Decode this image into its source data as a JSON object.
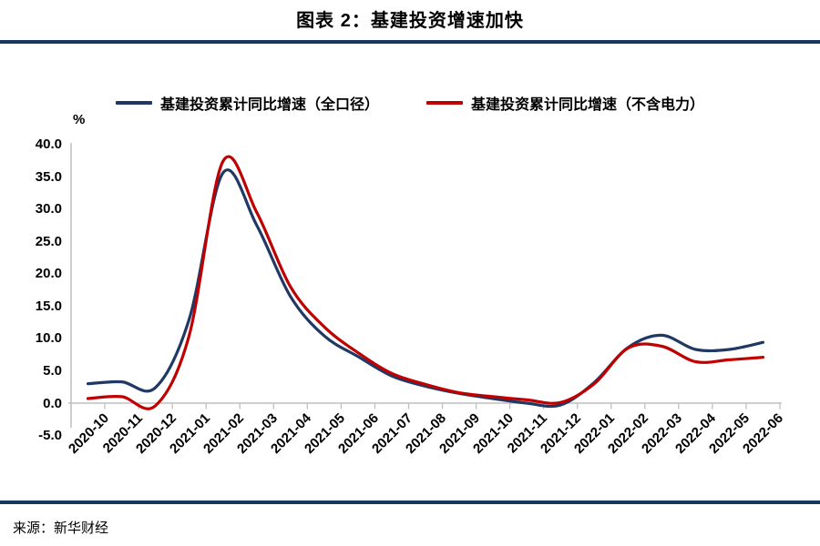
{
  "page": {
    "title": "图表 2：基建投资增速加快",
    "source": "来源：新华财经"
  },
  "colors": {
    "divider": "#17375E",
    "axis_line": "#BFBFBF",
    "navy_series": "#1F3864",
    "red_series": "#C00000",
    "text": "#000000"
  },
  "chart_data": {
    "type": "line",
    "title": "图表 2：基建投资增速加快",
    "unit_label": "%",
    "xlabel": "",
    "ylabel": "%",
    "ylim": [
      -5,
      40
    ],
    "ytick_step": 5,
    "yticks": [
      "40.0",
      "35.0",
      "30.0",
      "25.0",
      "20.0",
      "15.0",
      "10.0",
      "5.0",
      "0.0",
      "-5.0"
    ],
    "grid": false,
    "smooth": true,
    "legend_position": "top",
    "categories": [
      "2020-10",
      "2020-11",
      "2020-12",
      "2021-01",
      "2021-02",
      "2021-03",
      "2021-04",
      "2021-05",
      "2021-06",
      "2021-07",
      "2021-08",
      "2021-09",
      "2021-10",
      "2021-11",
      "2021-12",
      "2022-01",
      "2022-02",
      "2022-03",
      "2022-04",
      "2022-05",
      "2022-06"
    ],
    "series": [
      {
        "name": "基建投资累计同比增速（全口径）",
        "color": "#1F3864",
        "values": [
          3.0,
          3.3,
          2.4,
          13.0,
          35.6,
          27.5,
          16.5,
          10.4,
          7.2,
          4.2,
          2.6,
          1.5,
          0.7,
          0.0,
          -0.3,
          3.2,
          8.6,
          10.5,
          8.3,
          8.3,
          9.4
        ]
      },
      {
        "name": "基建投资累计同比增速（不含电力）",
        "color": "#C00000",
        "values": [
          0.7,
          1.0,
          -0.4,
          10.5,
          37.4,
          29.5,
          18.0,
          11.8,
          7.8,
          4.6,
          2.9,
          1.6,
          1.0,
          0.5,
          0.1,
          3.0,
          8.5,
          8.8,
          6.4,
          6.7,
          7.1
        ]
      }
    ]
  }
}
